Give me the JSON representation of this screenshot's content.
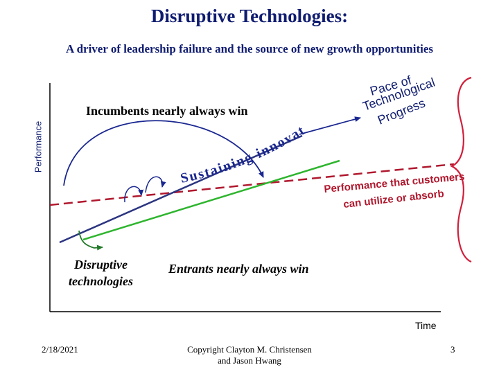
{
  "title": "Disruptive Technologies:",
  "subtitle": "A driver of leadership failure and the source of new growth opportunities",
  "axes": {
    "y_label": "Performance",
    "x_label": "Time"
  },
  "labels": {
    "pace_of_technological_progress": [
      "Pace of",
      "Technological",
      "Progress"
    ],
    "incumbents": "Incumbents nearly always win",
    "sustaining_innovations": "Sustaining innovations",
    "performance_absorb": [
      "Performance that customers",
      "can utilize or absorb"
    ],
    "disruptive": [
      "Disruptive",
      "technologies"
    ],
    "entrants": "Entrants nearly always win"
  },
  "footer": {
    "date": "2/18/2021",
    "copyright": [
      "Copyright Clayton M. Christensen",
      "and Jason Hwang"
    ],
    "page": "3"
  },
  "colors": {
    "title": "#0f1c70",
    "sustaining_line": "#2c3580",
    "disruptive_line": "#2fb52f",
    "absorb_line": "#b0182e",
    "arrow_blue": "#1a2790",
    "arrow_green": "#237a2a",
    "bracket": "#d11f3b"
  }
}
